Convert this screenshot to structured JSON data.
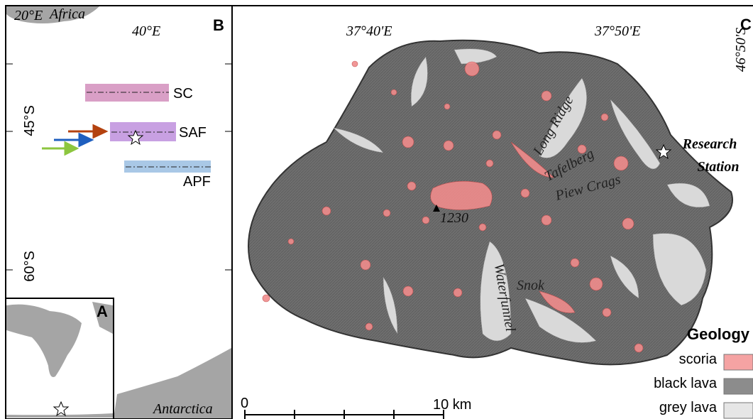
{
  "panel_b": {
    "label": "B",
    "lon_labels": [
      "20°E",
      "40°E"
    ],
    "lat_labels": [
      "45°S",
      "60°S"
    ],
    "continents": [
      "Africa",
      "Antarctica"
    ],
    "fronts": [
      "SC",
      "SAF",
      "APF"
    ]
  },
  "panel_a": {
    "label": "A"
  },
  "panel_c": {
    "label": "C",
    "lon_labels": [
      "37°40'E",
      "37°50'E"
    ],
    "lat_label": "46°50'S",
    "places": [
      "Long Ridge",
      "Tafelberg",
      "Piew Crags",
      "Waterfunnel",
      "Snok"
    ],
    "summit": "1230",
    "station": [
      "Research",
      "Station"
    ],
    "legend": {
      "title": "Geology",
      "items": [
        "scoria",
        "black lava",
        "grey lava"
      ]
    },
    "scale": [
      "0",
      "10 km"
    ]
  }
}
